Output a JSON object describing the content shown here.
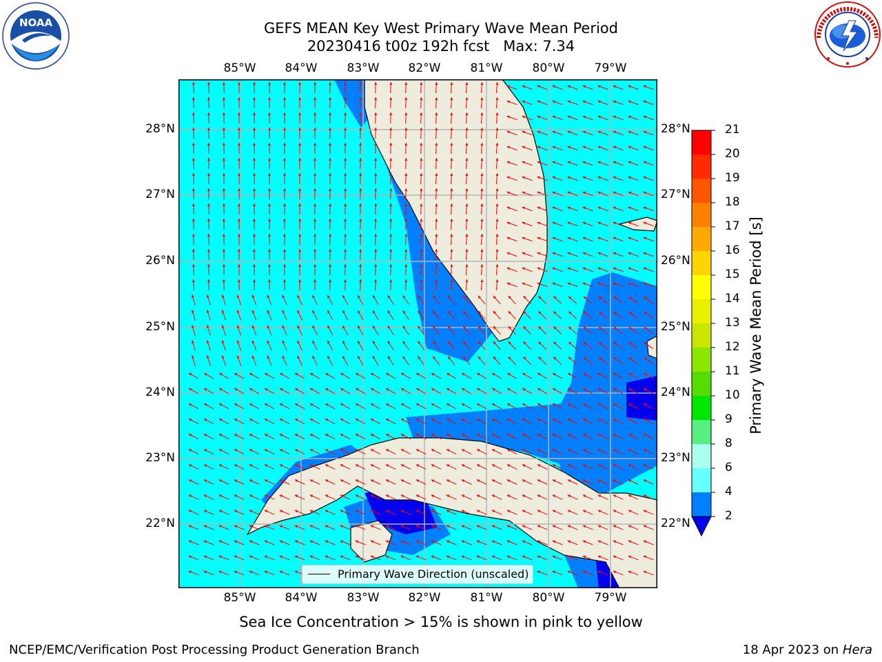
{
  "title": {
    "line1": "GEFS MEAN Key West Primary Wave Mean Period",
    "line2": "20230416 t00z 192h fcst   Max: 7.34"
  },
  "logos": {
    "noaa_text": "NOAA",
    "noaa_ring": "NATIONAL OCEANIC AND ATMOSPHERIC ADMINISTRATION · U.S. DEPARTMENT OF COMMERCE",
    "nws_ring": "NATIONAL WEATHER SERVICE"
  },
  "axes": {
    "lon_labels": [
      "85°W",
      "84°W",
      "83°W",
      "82°W",
      "81°W",
      "80°W",
      "79°W"
    ],
    "lat_labels": [
      "28°N",
      "27°N",
      "26°N",
      "25°N",
      "24°N",
      "23°N",
      "22°N"
    ]
  },
  "legend": {
    "label": "Primary Wave Direction (unscaled)"
  },
  "colorbar": {
    "title": "Primary Wave Mean Period [s]",
    "levels": [
      "2",
      "4",
      "6",
      "8",
      "9",
      "10",
      "11",
      "12",
      "13",
      "14",
      "15",
      "16",
      "17",
      "18",
      "19",
      "20",
      "21"
    ],
    "colors": [
      "#0a5cff",
      "#00d8ff",
      "#1ff2f2",
      "#7ffff0",
      "#aaffee",
      "#4df27a",
      "#1ee632",
      "#00d400",
      "#56dc00",
      "#a6e000",
      "#c8e600",
      "#eaf000",
      "#ffff00",
      "#ffd400",
      "#ffaa00",
      "#ff7f00",
      "#ff5500",
      "#ff2a00",
      "#ff0000"
    ],
    "colors_note": ""
  },
  "colors": {
    "ocean": "#00ffff",
    "ocean_light": "#33ffff",
    "mid_blue": "#0080ff",
    "deep_blue": "#0000ee",
    "land": "#eeecdc",
    "grid": "#b4b4b4",
    "arrow": "#ff0000"
  },
  "footer": {
    "caption": "Sea Ice Concentration > 15% is shown in pink to yellow",
    "left": "NCEP/EMC/Verification Post Processing Product Generation Branch",
    "right_prefix": "18 Apr 2023 on ",
    "right_host": "Hera"
  }
}
